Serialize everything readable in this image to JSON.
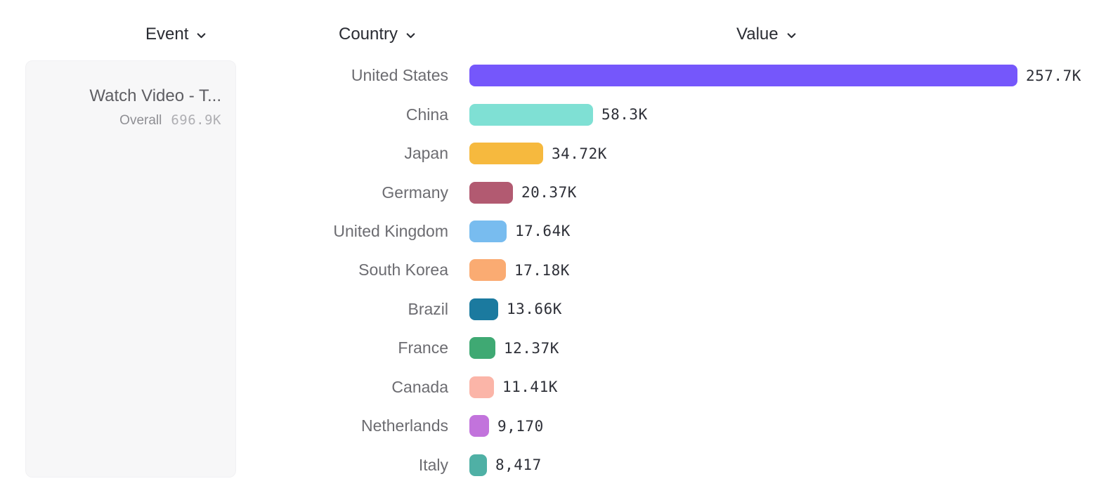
{
  "headers": {
    "event": "Event",
    "country": "Country",
    "value": "Value"
  },
  "event_card": {
    "title": "Watch Video - T...",
    "metric_label": "Overall",
    "metric_value": "696.9K"
  },
  "chart_data": {
    "type": "bar",
    "orientation": "horizontal",
    "title": "",
    "xlabel": "Value",
    "ylabel": "Country",
    "xlim": [
      0,
      257700
    ],
    "grid": false,
    "categories": [
      "United States",
      "China",
      "Japan",
      "Germany",
      "United Kingdom",
      "South Korea",
      "Brazil",
      "France",
      "Canada",
      "Netherlands",
      "Italy"
    ],
    "values": [
      257700,
      58300,
      34720,
      20370,
      17640,
      17180,
      13660,
      12370,
      11410,
      9170,
      8417
    ],
    "value_labels": [
      "257.7K",
      "58.3K",
      "34.72K",
      "20.37K",
      "17.64K",
      "17.18K",
      "13.66K",
      "12.37K",
      "11.41K",
      "9,170",
      "8,417"
    ],
    "bar_colors": [
      "#7557FB",
      "#7FE0D4",
      "#F6B93E",
      "#B25A71",
      "#78BCEF",
      "#FAAB72",
      "#1B7A9F",
      "#3FA973",
      "#FBB5A8",
      "#C273DC",
      "#4FB0A5"
    ]
  }
}
